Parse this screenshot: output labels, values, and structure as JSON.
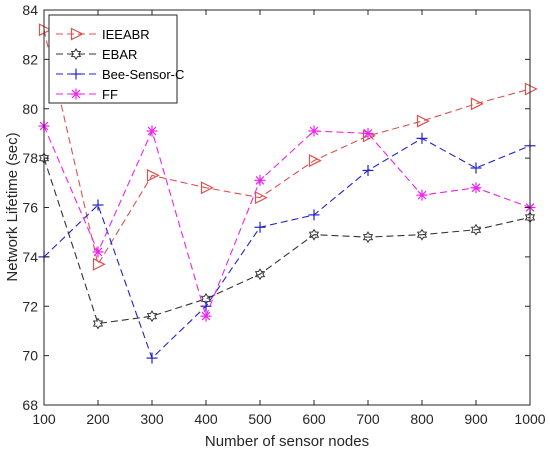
{
  "chart_data": {
    "type": "line",
    "title": "",
    "xlabel": "Number of sensor nodes",
    "ylabel": "Network Lifetime (sec)",
    "x": [
      100,
      200,
      300,
      400,
      500,
      600,
      700,
      800,
      900,
      1000
    ],
    "xticks": [
      "100",
      "200",
      "300",
      "400",
      "500",
      "600",
      "700",
      "800",
      "900",
      "1000"
    ],
    "yticks": [
      "68",
      "70",
      "72",
      "74",
      "76",
      "78",
      "80",
      "82",
      "84"
    ],
    "xlim": [
      100,
      1000
    ],
    "ylim": [
      68,
      84
    ],
    "grid": false,
    "legend_position": "top-left",
    "series": [
      {
        "name": "IEEABR",
        "color": "#d9534f",
        "marker": "triangle-right",
        "values": [
          83.2,
          73.7,
          77.3,
          76.8,
          76.4,
          77.9,
          78.9,
          79.5,
          80.2,
          80.8
        ]
      },
      {
        "name": "EBAR",
        "color": "#333333",
        "marker": "hexagram",
        "values": [
          78.0,
          71.3,
          71.6,
          72.3,
          73.3,
          74.9,
          74.8,
          74.9,
          75.1,
          75.6
        ]
      },
      {
        "name": "Bee-Sensor-C",
        "color": "#2222cc",
        "marker": "plus",
        "values": [
          74.0,
          76.1,
          69.9,
          72.0,
          75.2,
          75.7,
          77.5,
          78.8,
          77.6,
          78.5
        ]
      },
      {
        "name": "FF",
        "color": "#ee22ee",
        "marker": "asterisk",
        "values": [
          79.3,
          74.2,
          79.1,
          71.6,
          77.1,
          79.1,
          79.0,
          76.5,
          76.8,
          76.0
        ]
      }
    ]
  }
}
